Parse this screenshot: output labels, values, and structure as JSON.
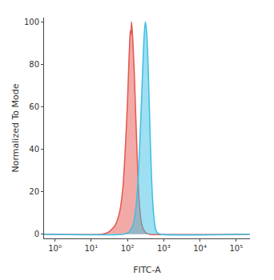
{
  "chart_data": {
    "type": "area",
    "x_label": "FITC-A",
    "y_label": "Normalized To Mode",
    "log": "x",
    "grid": false,
    "xlim": [
      0.5,
      240000
    ],
    "ylim": [
      -2,
      102
    ],
    "xticks": [
      {
        "value": 1,
        "label": "10⁰"
      },
      {
        "value": 10,
        "label": "10¹"
      },
      {
        "value": 100,
        "label": "10²"
      },
      {
        "value": 1000,
        "label": "10³"
      },
      {
        "value": 10000,
        "label": "10⁴"
      },
      {
        "value": 100000,
        "label": "10⁵"
      }
    ],
    "yticks": [
      0,
      20,
      40,
      60,
      80,
      100
    ],
    "series": [
      {
        "color": "#e5554f",
        "x": [
          0.5,
          20,
          30,
          45,
          60,
          75,
          90,
          100,
          110,
          115,
          120,
          125,
          130,
          140,
          155,
          170,
          190,
          210,
          240,
          280,
          330,
          400,
          240000
        ],
        "values": [
          0,
          0,
          1,
          4,
          10,
          22,
          45,
          62,
          82,
          90,
          96,
          94,
          100,
          92,
          75,
          55,
          32,
          16,
          6,
          2,
          0.5,
          0,
          0
        ]
      },
      {
        "color": "#3dbfe4",
        "x": [
          0.5,
          80,
          110,
          140,
          170,
          200,
          230,
          260,
          285,
          310,
          340,
          370,
          410,
          450,
          500,
          560,
          640,
          800,
          240000
        ],
        "values": [
          0,
          0,
          1,
          4,
          12,
          28,
          52,
          75,
          92,
          100,
          95,
          80,
          55,
          32,
          15,
          5,
          1,
          0,
          0
        ]
      }
    ]
  }
}
